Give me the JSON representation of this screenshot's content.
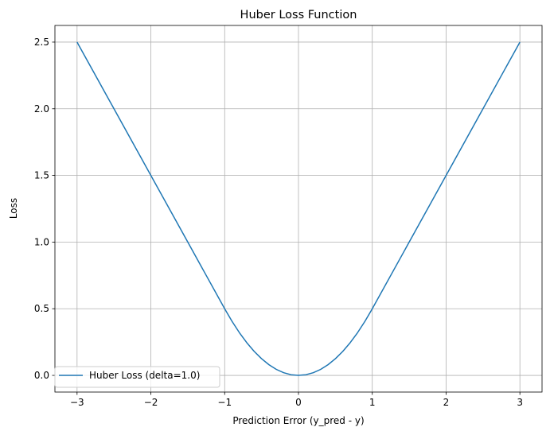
{
  "chart_data": {
    "type": "line",
    "title": "Huber Loss Function",
    "xlabel": "Prediction Error (y_pred - y)",
    "ylabel": "Loss",
    "xlim": [
      -3.3,
      3.3
    ],
    "ylim": [
      -0.125,
      2.625
    ],
    "xticks": [
      -3,
      -2,
      -1,
      0,
      1,
      2,
      3
    ],
    "xtick_labels": [
      "−3",
      "−2",
      "−1",
      "0",
      "1",
      "2",
      "3"
    ],
    "yticks": [
      0.0,
      0.5,
      1.0,
      1.5,
      2.0,
      2.5
    ],
    "ytick_labels": [
      "0.0",
      "0.5",
      "1.0",
      "1.5",
      "2.0",
      "2.5"
    ],
    "grid": true,
    "legend_position": "lower-left",
    "series": [
      {
        "name": "Huber Loss (delta=1.0)",
        "color": "#1f77b4",
        "x": [
          -3.0,
          -2.5,
          -2.0,
          -1.5,
          -1.0,
          -0.9,
          -0.8,
          -0.7,
          -0.6,
          -0.5,
          -0.4,
          -0.3,
          -0.2,
          -0.1,
          0.0,
          0.1,
          0.2,
          0.3,
          0.4,
          0.5,
          0.6,
          0.7,
          0.8,
          0.9,
          1.0,
          1.5,
          2.0,
          2.5,
          3.0
        ],
        "y": [
          2.5,
          2.0,
          1.5,
          1.0,
          0.5,
          0.405,
          0.32,
          0.245,
          0.18,
          0.125,
          0.08,
          0.045,
          0.02,
          0.005,
          0.0,
          0.005,
          0.02,
          0.045,
          0.08,
          0.125,
          0.18,
          0.245,
          0.32,
          0.405,
          0.5,
          1.0,
          1.5,
          2.0,
          2.5
        ]
      }
    ]
  }
}
